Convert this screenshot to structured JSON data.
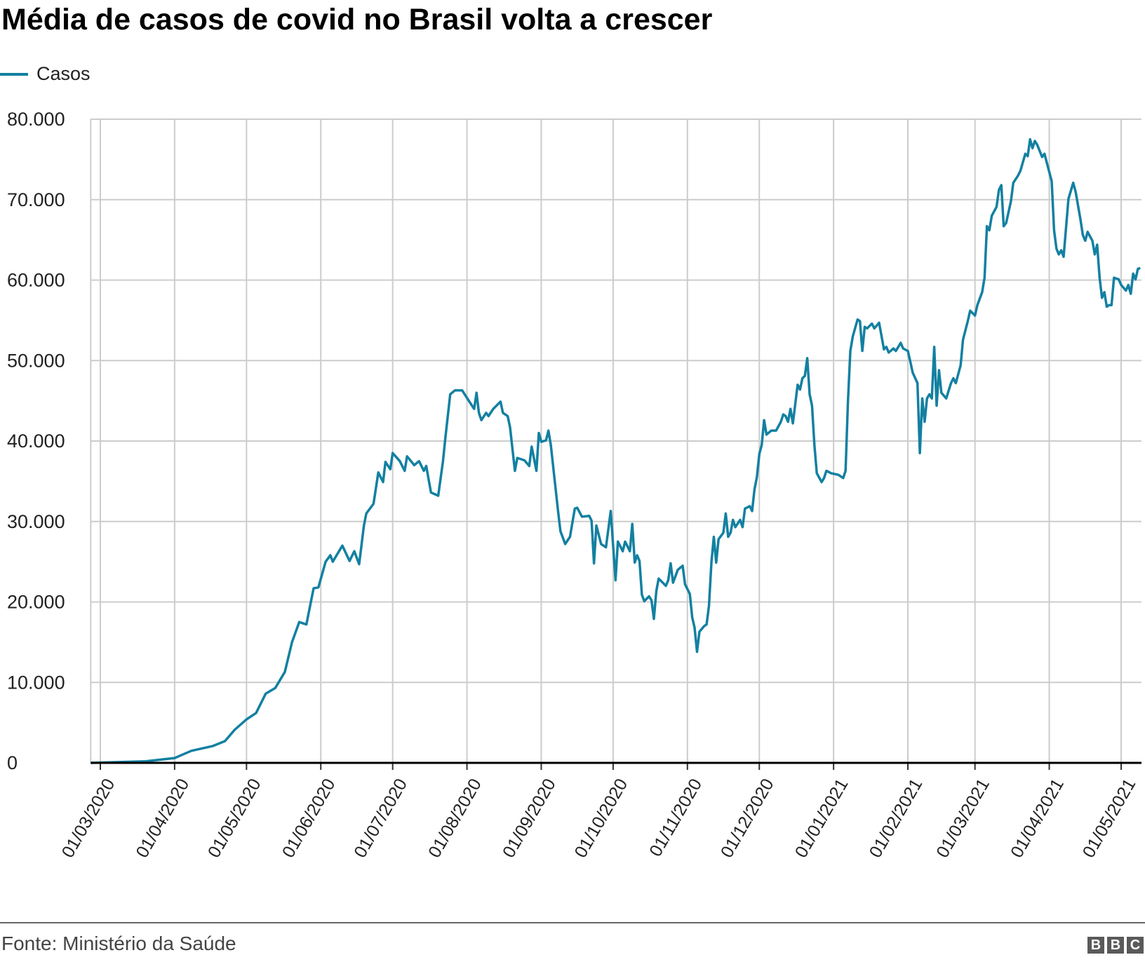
{
  "chart_data": {
    "type": "line",
    "title": "Média de casos de covid no Brasil volta a crescer",
    "xlabel": "",
    "ylabel": "",
    "ylim": [
      0,
      80000
    ],
    "yticks": [
      "0",
      "10.000",
      "20.000",
      "30.000",
      "40.000",
      "50.000",
      "60.000",
      "70.000",
      "80.000"
    ],
    "ytick_values": [
      0,
      10000,
      20000,
      30000,
      40000,
      50000,
      60000,
      70000,
      80000
    ],
    "xticks": [
      "01/03/2020",
      "01/04/2020",
      "01/05/2020",
      "01/06/2020",
      "01/07/2020",
      "01/08/2020",
      "01/09/2020",
      "01/10/2020",
      "01/11/2020",
      "01/12/2020",
      "01/01/2021",
      "01/02/2021",
      "01/03/2021",
      "01/04/2021",
      "01/05/2021"
    ],
    "xlim": [
      "26/02/2020",
      "09/05/2021"
    ],
    "grid": true,
    "legend_position": "top-left",
    "series": [
      {
        "name": "Casos",
        "color": "#1380A1",
        "points": [
          [
            "26/02/2020",
            0
          ],
          [
            "20/03/2020",
            200
          ],
          [
            "01/04/2020",
            600
          ],
          [
            "08/04/2020",
            1500
          ],
          [
            "17/04/2020",
            2100
          ],
          [
            "22/04/2020",
            2700
          ],
          [
            "26/04/2020",
            4100
          ],
          [
            "01/05/2020",
            5400
          ],
          [
            "05/05/2020",
            6200
          ],
          [
            "09/05/2020",
            8600
          ],
          [
            "13/05/2020",
            9300
          ],
          [
            "17/05/2020",
            11300
          ],
          [
            "20/05/2020",
            15000
          ],
          [
            "23/05/2020",
            17500
          ],
          [
            "26/05/2020",
            17200
          ],
          [
            "29/05/2020",
            21700
          ],
          [
            "31/05/2020",
            21800
          ],
          [
            "03/06/2020",
            25000
          ],
          [
            "05/06/2020",
            25800
          ],
          [
            "06/06/2020",
            25000
          ],
          [
            "10/06/2020",
            27000
          ],
          [
            "13/06/2020",
            25100
          ],
          [
            "15/06/2020",
            26300
          ],
          [
            "17/06/2020",
            24700
          ],
          [
            "19/06/2020",
            29500
          ],
          [
            "20/06/2020",
            31000
          ],
          [
            "23/06/2020",
            32200
          ],
          [
            "25/06/2020",
            36100
          ],
          [
            "27/06/2020",
            34900
          ],
          [
            "28/06/2020",
            37400
          ],
          [
            "30/06/2020",
            36500
          ],
          [
            "01/07/2020",
            38500
          ],
          [
            "04/07/2020",
            37500
          ],
          [
            "06/07/2020",
            36300
          ],
          [
            "07/07/2020",
            38100
          ],
          [
            "10/07/2020",
            37000
          ],
          [
            "12/07/2020",
            37500
          ],
          [
            "14/07/2020",
            36300
          ],
          [
            "15/07/2020",
            36900
          ],
          [
            "17/07/2020",
            33600
          ],
          [
            "20/07/2020",
            33200
          ],
          [
            "22/07/2020",
            37500
          ],
          [
            "23/07/2020",
            40400
          ],
          [
            "25/07/2020",
            45800
          ],
          [
            "27/07/2020",
            46300
          ],
          [
            "30/07/2020",
            46300
          ],
          [
            "02/08/2020",
            44900
          ],
          [
            "04/08/2020",
            44000
          ],
          [
            "05/08/2020",
            46000
          ],
          [
            "06/08/2020",
            43500
          ],
          [
            "07/08/2020",
            42600
          ],
          [
            "09/08/2020",
            43500
          ],
          [
            "10/08/2020",
            43100
          ],
          [
            "12/08/2020",
            44000
          ],
          [
            "15/08/2020",
            44900
          ],
          [
            "16/08/2020",
            43500
          ],
          [
            "18/08/2020",
            43100
          ],
          [
            "19/08/2020",
            41700
          ],
          [
            "21/08/2020",
            36300
          ],
          [
            "22/08/2020",
            37900
          ],
          [
            "25/08/2020",
            37600
          ],
          [
            "27/08/2020",
            36900
          ],
          [
            "28/08/2020",
            39300
          ],
          [
            "30/08/2020",
            36300
          ],
          [
            "31/08/2020",
            41000
          ],
          [
            "01/09/2020",
            39900
          ],
          [
            "03/09/2020",
            40100
          ],
          [
            "04/09/2020",
            41300
          ],
          [
            "05/09/2020",
            39500
          ],
          [
            "08/09/2020",
            31300
          ],
          [
            "09/09/2020",
            28800
          ],
          [
            "11/09/2020",
            27200
          ],
          [
            "13/09/2020",
            28100
          ],
          [
            "15/09/2020",
            31600
          ],
          [
            "16/09/2020",
            31700
          ],
          [
            "18/09/2020",
            30600
          ],
          [
            "21/09/2020",
            30700
          ],
          [
            "22/09/2020",
            30100
          ],
          [
            "23/09/2020",
            24800
          ],
          [
            "24/09/2020",
            29500
          ],
          [
            "26/09/2020",
            27200
          ],
          [
            "28/09/2020",
            26800
          ],
          [
            "30/09/2020",
            31300
          ],
          [
            "02/10/2020",
            22700
          ],
          [
            "03/10/2020",
            27500
          ],
          [
            "05/10/2020",
            26300
          ],
          [
            "06/10/2020",
            27500
          ],
          [
            "08/10/2020",
            26300
          ],
          [
            "09/10/2020",
            29700
          ],
          [
            "10/10/2020",
            24900
          ],
          [
            "11/10/2020",
            25800
          ],
          [
            "12/10/2020",
            25100
          ],
          [
            "13/10/2020",
            20900
          ],
          [
            "14/10/2020",
            20100
          ],
          [
            "16/10/2020",
            20700
          ],
          [
            "17/10/2020",
            20200
          ],
          [
            "18/10/2020",
            17900
          ],
          [
            "19/10/2020",
            21300
          ],
          [
            "20/10/2020",
            22900
          ],
          [
            "23/10/2020",
            22000
          ],
          [
            "24/10/2020",
            22700
          ],
          [
            "25/10/2020",
            24800
          ],
          [
            "26/10/2020",
            22400
          ],
          [
            "28/10/2020",
            24000
          ],
          [
            "30/10/2020",
            24500
          ],
          [
            "31/10/2020",
            22200
          ],
          [
            "02/11/2020",
            21000
          ],
          [
            "03/11/2020",
            18100
          ],
          [
            "04/11/2020",
            16800
          ],
          [
            "05/11/2020",
            13800
          ],
          [
            "06/11/2020",
            16300
          ],
          [
            "08/11/2020",
            17000
          ],
          [
            "09/11/2020",
            17200
          ],
          [
            "10/11/2020",
            19500
          ],
          [
            "11/11/2020",
            24900
          ],
          [
            "12/11/2020",
            28100
          ],
          [
            "13/11/2020",
            24900
          ],
          [
            "14/11/2020",
            27800
          ],
          [
            "16/11/2020",
            28600
          ],
          [
            "17/11/2020",
            31000
          ],
          [
            "18/11/2020",
            28100
          ],
          [
            "19/11/2020",
            28600
          ],
          [
            "20/11/2020",
            30200
          ],
          [
            "21/11/2020",
            29300
          ],
          [
            "23/11/2020",
            30200
          ],
          [
            "24/11/2020",
            29300
          ],
          [
            "25/11/2020",
            31600
          ],
          [
            "27/11/2020",
            31900
          ],
          [
            "28/11/2020",
            31300
          ],
          [
            "29/11/2020",
            34000
          ],
          [
            "30/11/2020",
            35500
          ],
          [
            "01/12/2020",
            38400
          ],
          [
            "02/12/2020",
            39500
          ],
          [
            "03/12/2020",
            42600
          ],
          [
            "04/12/2020",
            40800
          ],
          [
            "06/12/2020",
            41300
          ],
          [
            "08/12/2020",
            41300
          ],
          [
            "10/12/2020",
            42400
          ],
          [
            "11/12/2020",
            43300
          ],
          [
            "12/12/2020",
            43100
          ],
          [
            "13/12/2020",
            42400
          ],
          [
            "14/12/2020",
            44000
          ],
          [
            "15/12/2020",
            42200
          ],
          [
            "17/12/2020",
            47000
          ],
          [
            "18/12/2020",
            46400
          ],
          [
            "19/12/2020",
            47800
          ],
          [
            "20/12/2020",
            48100
          ],
          [
            "21/12/2020",
            50300
          ],
          [
            "22/12/2020",
            45800
          ],
          [
            "23/12/2020",
            44400
          ],
          [
            "24/12/2020",
            39500
          ],
          [
            "25/12/2020",
            36000
          ],
          [
            "27/12/2020",
            34900
          ],
          [
            "28/12/2020",
            35400
          ],
          [
            "29/12/2020",
            36300
          ],
          [
            "31/12/2020",
            36000
          ],
          [
            "03/01/2021",
            35800
          ],
          [
            "05/01/2021",
            35400
          ],
          [
            "06/01/2021",
            36300
          ],
          [
            "07/01/2021",
            44900
          ],
          [
            "08/01/2021",
            51200
          ],
          [
            "09/01/2021",
            53000
          ],
          [
            "11/01/2021",
            55100
          ],
          [
            "12/01/2021",
            54900
          ],
          [
            "13/01/2021",
            51200
          ],
          [
            "14/01/2021",
            54200
          ],
          [
            "15/01/2021",
            54000
          ],
          [
            "17/01/2021",
            54600
          ],
          [
            "18/01/2021",
            54000
          ],
          [
            "20/01/2021",
            54700
          ],
          [
            "22/01/2021",
            51400
          ],
          [
            "23/01/2021",
            51700
          ],
          [
            "24/01/2021",
            51000
          ],
          [
            "26/01/2021",
            51500
          ],
          [
            "27/01/2021",
            51200
          ],
          [
            "29/01/2021",
            52200
          ],
          [
            "30/01/2021",
            51500
          ],
          [
            "01/02/2021",
            51200
          ],
          [
            "02/02/2021",
            49900
          ],
          [
            "03/02/2021",
            48500
          ],
          [
            "05/02/2021",
            47200
          ],
          [
            "06/02/2021",
            38500
          ],
          [
            "07/02/2021",
            45300
          ],
          [
            "08/02/2021",
            42400
          ],
          [
            "09/02/2021",
            45300
          ],
          [
            "10/02/2021",
            45800
          ],
          [
            "11/02/2021",
            45300
          ],
          [
            "12/02/2021",
            51700
          ],
          [
            "13/02/2021",
            44400
          ],
          [
            "14/02/2021",
            48800
          ],
          [
            "15/02/2021",
            46000
          ],
          [
            "17/02/2021",
            45300
          ],
          [
            "19/02/2021",
            47200
          ],
          [
            "20/02/2021",
            47800
          ],
          [
            "21/02/2021",
            47200
          ],
          [
            "23/02/2021",
            49400
          ],
          [
            "24/02/2021",
            52600
          ],
          [
            "26/02/2021",
            54900
          ],
          [
            "27/02/2021",
            56200
          ],
          [
            "01/03/2021",
            55600
          ],
          [
            "02/03/2021",
            56900
          ],
          [
            "04/03/2021",
            58500
          ],
          [
            "05/03/2021",
            60300
          ],
          [
            "06/03/2021",
            66700
          ],
          [
            "07/03/2021",
            66200
          ],
          [
            "08/03/2021",
            68000
          ],
          [
            "10/03/2021",
            69100
          ],
          [
            "11/03/2021",
            71200
          ],
          [
            "12/03/2021",
            71800
          ],
          [
            "13/03/2021",
            66700
          ],
          [
            "14/03/2021",
            67100
          ],
          [
            "16/03/2021",
            69800
          ],
          [
            "17/03/2021",
            72100
          ],
          [
            "19/03/2021",
            73000
          ],
          [
            "20/03/2021",
            73600
          ],
          [
            "22/03/2021",
            75700
          ],
          [
            "23/03/2021",
            75400
          ],
          [
            "24/03/2021",
            77500
          ],
          [
            "25/03/2021",
            76400
          ],
          [
            "26/03/2021",
            77300
          ],
          [
            "27/03/2021",
            76800
          ],
          [
            "29/03/2021",
            75300
          ],
          [
            "30/03/2021",
            75700
          ],
          [
            "02/04/2021",
            72300
          ],
          [
            "03/04/2021",
            66200
          ],
          [
            "04/04/2021",
            63900
          ],
          [
            "05/04/2021",
            63200
          ],
          [
            "06/04/2021",
            63700
          ],
          [
            "07/04/2021",
            62900
          ],
          [
            "09/04/2021",
            70100
          ],
          [
            "11/04/2021",
            72100
          ],
          [
            "12/04/2021",
            71000
          ],
          [
            "14/04/2021",
            67600
          ],
          [
            "15/04/2021",
            65600
          ],
          [
            "16/04/2021",
            64900
          ],
          [
            "17/04/2021",
            66000
          ],
          [
            "19/04/2021",
            64900
          ],
          [
            "20/04/2021",
            63200
          ],
          [
            "21/04/2021",
            64400
          ],
          [
            "22/04/2021",
            60300
          ],
          [
            "23/04/2021",
            57800
          ],
          [
            "24/04/2021",
            58500
          ],
          [
            "25/04/2021",
            56700
          ],
          [
            "26/04/2021",
            56900
          ],
          [
            "27/04/2021",
            56900
          ],
          [
            "28/04/2021",
            60300
          ],
          [
            "30/04/2021",
            60100
          ],
          [
            "01/05/2021",
            59400
          ],
          [
            "03/05/2021",
            58700
          ],
          [
            "04/05/2021",
            59400
          ],
          [
            "05/05/2021",
            58300
          ],
          [
            "06/05/2021",
            60800
          ],
          [
            "07/05/2021",
            60100
          ],
          [
            "08/05/2021",
            61400
          ],
          [
            "09/05/2021",
            61500
          ]
        ]
      }
    ]
  },
  "legend": {
    "label": "Casos"
  },
  "footer": {
    "source": "Fonte: Ministério da Saúde",
    "logo": "BBC"
  }
}
